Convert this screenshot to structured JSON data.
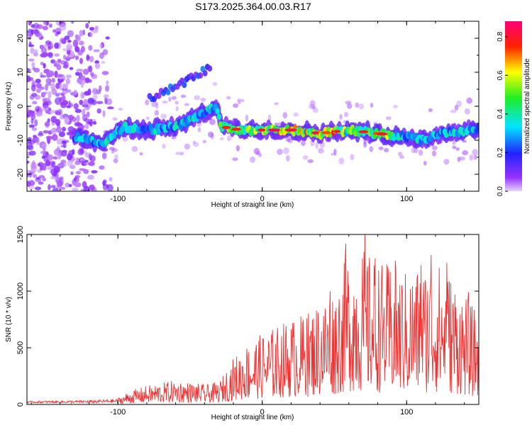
{
  "title": "S173.2025.364.00.03.R17",
  "chart_data": [
    {
      "type": "heatmap",
      "xlabel": "Height of straight line (km)",
      "ylabel": "Frequency (Hz)",
      "xlim": [
        -163,
        150
      ],
      "ylim": [
        -25,
        25
      ],
      "x_ticks": [
        -100,
        0,
        100
      ],
      "y_ticks": [
        -20,
        -10,
        0,
        10,
        20
      ],
      "colorbar": {
        "label": "Normalized spectral amplitude",
        "range": [
          0.0,
          0.88
        ],
        "ticks": [
          0.0,
          0.2,
          0.4,
          0.6,
          0.8
        ]
      },
      "ridge": [
        [
          -128,
          -9
        ],
        [
          -110,
          -11
        ],
        [
          -95,
          -6
        ],
        [
          -80,
          -7
        ],
        [
          -60,
          -6
        ],
        [
          -40,
          -2
        ],
        [
          -32,
          0
        ],
        [
          -28,
          -6
        ],
        [
          -15,
          -7
        ],
        [
          0,
          -7
        ],
        [
          20,
          -7
        ],
        [
          40,
          -8
        ],
        [
          60,
          -7
        ],
        [
          80,
          -8
        ],
        [
          100,
          -9
        ],
        [
          110,
          -10
        ],
        [
          125,
          -8
        ],
        [
          145,
          -7
        ]
      ],
      "upper_branch": [
        [
          -75,
          3
        ],
        [
          -60,
          6
        ],
        [
          -45,
          9
        ],
        [
          -38,
          11
        ]
      ],
      "noise_region_x": [
        -163,
        -105
      ]
    },
    {
      "type": "line",
      "xlabel": "Height of straight line (km)",
      "ylabel": "SNR (10 * v/v)",
      "xlim": [
        -163,
        150
      ],
      "ylim": [
        0,
        1500
      ],
      "x_ticks": [
        -100,
        0,
        100
      ],
      "y_ticks": [
        0,
        500,
        1000,
        1500
      ],
      "series_color": "#ee3333",
      "envelope": [
        [
          -163,
          30
        ],
        [
          -140,
          35
        ],
        [
          -120,
          40
        ],
        [
          -100,
          60
        ],
        [
          -90,
          130
        ],
        [
          -80,
          170
        ],
        [
          -60,
          220
        ],
        [
          -40,
          180
        ],
        [
          -30,
          200
        ],
        [
          -20,
          420
        ],
        [
          -10,
          560
        ],
        [
          0,
          640
        ],
        [
          20,
          780
        ],
        [
          30,
          820
        ],
        [
          40,
          950
        ],
        [
          50,
          1050
        ],
        [
          60,
          1400
        ],
        [
          70,
          1400
        ],
        [
          80,
          1300
        ],
        [
          90,
          1260
        ],
        [
          100,
          1200
        ],
        [
          110,
          1260
        ],
        [
          120,
          1300
        ],
        [
          130,
          1200
        ],
        [
          140,
          1000
        ],
        [
          150,
          800
        ]
      ],
      "peaks": [
        [
          58,
          1420
        ],
        [
          71,
          1500
        ],
        [
          78,
          1290
        ],
        [
          92,
          1270
        ],
        [
          110,
          1230
        ],
        [
          117,
          1320
        ],
        [
          128,
          1250
        ],
        [
          143,
          990
        ],
        [
          47,
          1000
        ],
        [
          31,
          760
        ]
      ]
    }
  ]
}
